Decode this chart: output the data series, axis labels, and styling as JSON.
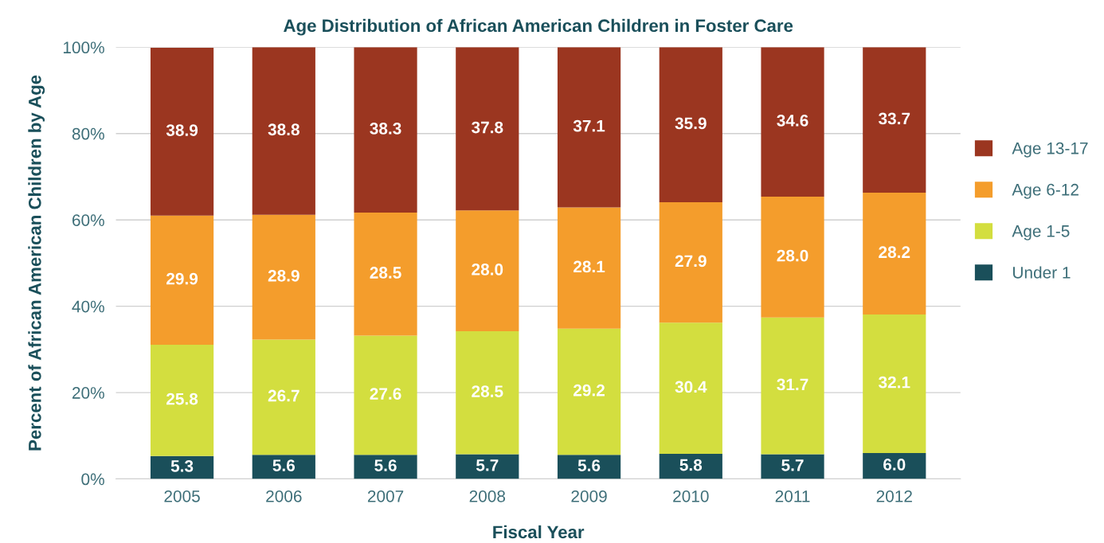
{
  "chart_data": {
    "type": "bar",
    "stacked": true,
    "title": "Age Distribution of African American Children in Foster Care",
    "xlabel": "Fiscal Year",
    "ylabel": "Percent of African American Children by Age",
    "categories": [
      "2005",
      "2006",
      "2007",
      "2008",
      "2009",
      "2010",
      "2011",
      "2012"
    ],
    "series": [
      {
        "name": "Under 1",
        "color": "#1a4f5a",
        "values": [
          5.3,
          5.6,
          5.6,
          5.7,
          5.6,
          5.8,
          5.7,
          6.0
        ],
        "value_labels": [
          "5.3",
          "5.6",
          "5.6",
          "5.7",
          "5.6",
          "5.8",
          "5.7",
          "6.0"
        ]
      },
      {
        "name": "Age 1-5",
        "color": "#d3de3f",
        "values": [
          25.8,
          26.7,
          27.6,
          28.5,
          29.2,
          30.4,
          31.7,
          32.1
        ],
        "value_labels": [
          "25.8",
          "26.7",
          "27.6",
          "28.5",
          "29.2",
          "30.4",
          "31.7",
          "32.1"
        ]
      },
      {
        "name": "Age 6-12",
        "color": "#f49d2c",
        "values": [
          29.9,
          28.9,
          28.5,
          28.0,
          28.1,
          27.9,
          28.0,
          28.2
        ],
        "value_labels": [
          "29.9",
          "28.9",
          "28.5",
          "28.0",
          "28.1",
          "27.9",
          "28.0",
          "28.2"
        ]
      },
      {
        "name": "Age 13-17",
        "color": "#9b3620",
        "values": [
          38.9,
          38.8,
          38.3,
          37.8,
          37.1,
          35.9,
          34.6,
          33.7
        ],
        "value_labels": [
          "38.9",
          "38.8",
          "38.3",
          "37.8",
          "37.1",
          "35.9",
          "34.6",
          "33.7"
        ]
      }
    ],
    "ylim": [
      0,
      100
    ],
    "yticks": [
      {
        "value": 0,
        "label": "0%"
      },
      {
        "value": 20,
        "label": "20%"
      },
      {
        "value": 40,
        "label": "40%"
      },
      {
        "value": 60,
        "label": "60%"
      },
      {
        "value": 80,
        "label": "80%"
      },
      {
        "value": 100,
        "label": "100%"
      }
    ],
    "grid": "y",
    "legend": "right"
  }
}
